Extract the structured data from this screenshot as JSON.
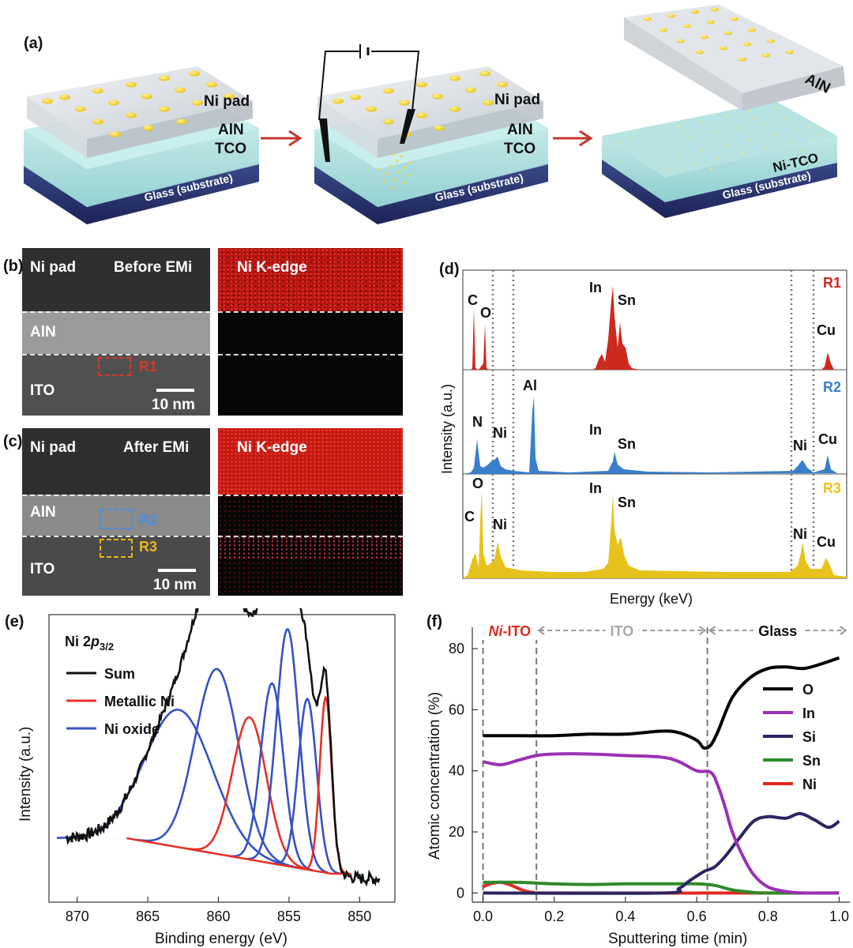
{
  "panel_a": {
    "label": "(a)",
    "stage1": {
      "ni_pad": "Ni pad",
      "aln": "AlN",
      "tco": "TCO",
      "glass": "Glass (substrate)"
    },
    "stage2": {
      "ni_pad": "Ni pad",
      "aln": "AlN",
      "tco": "TCO",
      "glass": "Glass (substrate)"
    },
    "stage3": {
      "aln": "AlN",
      "ni_tco": "Ni-TCO",
      "glass": "Glass (substrate)"
    },
    "colors": {
      "pad": "#f5d21a",
      "aln": "#d9dde2",
      "tco": "#a9dcdc",
      "glass": "#2a3570",
      "arrow": "#c0392b"
    }
  },
  "panel_b": {
    "label": "(b)",
    "image_labels": {
      "top_left": "Ni pad",
      "top_right": "Before EMi",
      "middle": "AlN",
      "bottom": "ITO",
      "scalebar": "10 nm"
    },
    "region": "R1",
    "map_label": "Ni K-edge"
  },
  "panel_c": {
    "label": "(c)",
    "image_labels": {
      "top_left": "Ni pad",
      "top_right": "After EMi",
      "middle": "AlN",
      "bottom": "ITO",
      "scalebar": "10 nm"
    },
    "regions": [
      "R2",
      "R3"
    ],
    "map_label": "Ni K-edge"
  },
  "panel_d": {
    "label": "(d)",
    "xlabel": "Energy (keV)",
    "ylabel": "Intensity (a.u.)",
    "spectra": [
      {
        "name": "R1",
        "color": "#cc2a1e",
        "peaks": [
          "C",
          "O",
          "In",
          "Sn",
          "Cu"
        ]
      },
      {
        "name": "R2",
        "color": "#3a7fcc",
        "peaks": [
          "N",
          "Ni",
          "Al",
          "In",
          "Sn",
          "Ni",
          "Cu"
        ]
      },
      {
        "name": "R3",
        "color": "#e8c21c",
        "peaks": [
          "O",
          "C",
          "Ni",
          "In",
          "Sn",
          "Ni",
          "Cu"
        ]
      }
    ]
  },
  "chart_data": [
    {
      "panel": "(e)",
      "type": "line",
      "title": "Ni 2p3/2",
      "title_main": "Ni 2",
      "title_p": "p",
      "title_sub": "3/2",
      "xlabel": "Binding energy (eV)",
      "ylabel": "Intensity (a.u.)",
      "xlim": [
        872,
        847.5
      ],
      "xticks": [
        870,
        865,
        860,
        855,
        850
      ],
      "x_reversed": true,
      "legend": [
        "Sum",
        "Metallic Ni",
        "Ni oxide"
      ],
      "colors": {
        "Sum": "#111111",
        "Metallic Ni": "#e53228",
        "Ni oxide": "#3652c4"
      },
      "components": [
        {
          "series": "Ni oxide",
          "center": 862.8,
          "height": 0.58,
          "width": 2.4
        },
        {
          "series": "Ni oxide",
          "center": 860.1,
          "height": 0.78,
          "width": 1.55
        },
        {
          "series": "Metallic Ni",
          "center": 857.8,
          "height": 0.6,
          "width": 1.2
        },
        {
          "series": "Ni oxide",
          "center": 856.2,
          "height": 0.76,
          "width": 0.8
        },
        {
          "series": "Ni oxide",
          "center": 855.1,
          "height": 1.0,
          "width": 0.8
        },
        {
          "series": "Ni oxide",
          "center": 853.7,
          "height": 0.72,
          "width": 0.65
        },
        {
          "series": "Metallic Ni",
          "center": 852.4,
          "height": 0.74,
          "width": 0.42
        }
      ],
      "baseline": {
        "series": "Metallic Ni",
        "from": [
          866.5,
          0.17
        ],
        "to": [
          852.0,
          0.02
        ]
      }
    },
    {
      "panel": "(f)",
      "type": "line",
      "xlabel": "Sputtering time (min)",
      "ylabel": "Atomic concentration (%)",
      "xlim": [
        -0.03,
        1.03
      ],
      "ylim": [
        -3,
        87
      ],
      "xticks": [
        0.0,
        0.2,
        0.4,
        0.6,
        0.8,
        1.0
      ],
      "yticks": [
        0,
        20,
        40,
        60,
        80
      ],
      "regions": [
        {
          "label": "Ni-ITO",
          "from": 0.0,
          "to": 0.15
        },
        {
          "label": "ITO",
          "from": 0.15,
          "to": 0.63
        },
        {
          "label": "Glass",
          "from": 0.63,
          "to": 1.03
        }
      ],
      "region_colors": [
        "#d62d20",
        "#a8a8a8",
        "#111111"
      ],
      "series": [
        {
          "name": "O",
          "color": "#000000",
          "x": [
            0.0,
            0.1,
            0.2,
            0.3,
            0.4,
            0.5,
            0.55,
            0.6,
            0.62,
            0.64,
            0.66,
            0.7,
            0.75,
            0.8,
            0.85,
            0.9,
            0.95,
            1.0
          ],
          "y": [
            51.5,
            51.5,
            51.5,
            52.0,
            52.0,
            53.0,
            52.5,
            50.0,
            47.5,
            48.5,
            53.0,
            64.0,
            70.5,
            73.5,
            74.0,
            73.5,
            75.0,
            77.0
          ]
        },
        {
          "name": "In",
          "color": "#9a31b5",
          "x": [
            0.0,
            0.05,
            0.1,
            0.15,
            0.2,
            0.3,
            0.4,
            0.5,
            0.55,
            0.6,
            0.64,
            0.66,
            0.68,
            0.7,
            0.73,
            0.76,
            0.8,
            0.85,
            0.9,
            1.0
          ],
          "y": [
            43.0,
            42.0,
            43.5,
            45.0,
            45.5,
            45.5,
            45.0,
            44.5,
            43.0,
            40.0,
            39.5,
            35.0,
            28.0,
            20.0,
            12.0,
            6.0,
            2.0,
            0.5,
            0.0,
            0.0
          ]
        },
        {
          "name": "Si",
          "color": "#2b2560",
          "x": [
            0.0,
            0.5,
            0.55,
            0.58,
            0.62,
            0.65,
            0.68,
            0.72,
            0.76,
            0.8,
            0.85,
            0.89,
            0.93,
            0.97,
            1.0
          ],
          "y": [
            0.0,
            0.0,
            1.5,
            4.0,
            7.0,
            8.5,
            12.0,
            18.0,
            23.5,
            25.0,
            24.5,
            26.0,
            24.0,
            21.5,
            23.5
          ]
        },
        {
          "name": "Sn",
          "color": "#2f8a2a",
          "x": [
            0.0,
            0.1,
            0.2,
            0.3,
            0.4,
            0.5,
            0.6,
            0.65,
            0.7,
            0.75,
            0.8,
            1.0
          ],
          "y": [
            3.5,
            3.5,
            3.0,
            2.8,
            3.0,
            3.0,
            3.0,
            2.5,
            1.0,
            0.3,
            0.0,
            0.0
          ]
        },
        {
          "name": "Ni",
          "color": "#e02b1f",
          "x": [
            0.0,
            0.02,
            0.05,
            0.08,
            0.11,
            0.14,
            0.2,
            1.0
          ],
          "y": [
            2.0,
            3.0,
            3.5,
            2.5,
            1.0,
            0.2,
            0.0,
            0.0
          ]
        }
      ]
    }
  ]
}
